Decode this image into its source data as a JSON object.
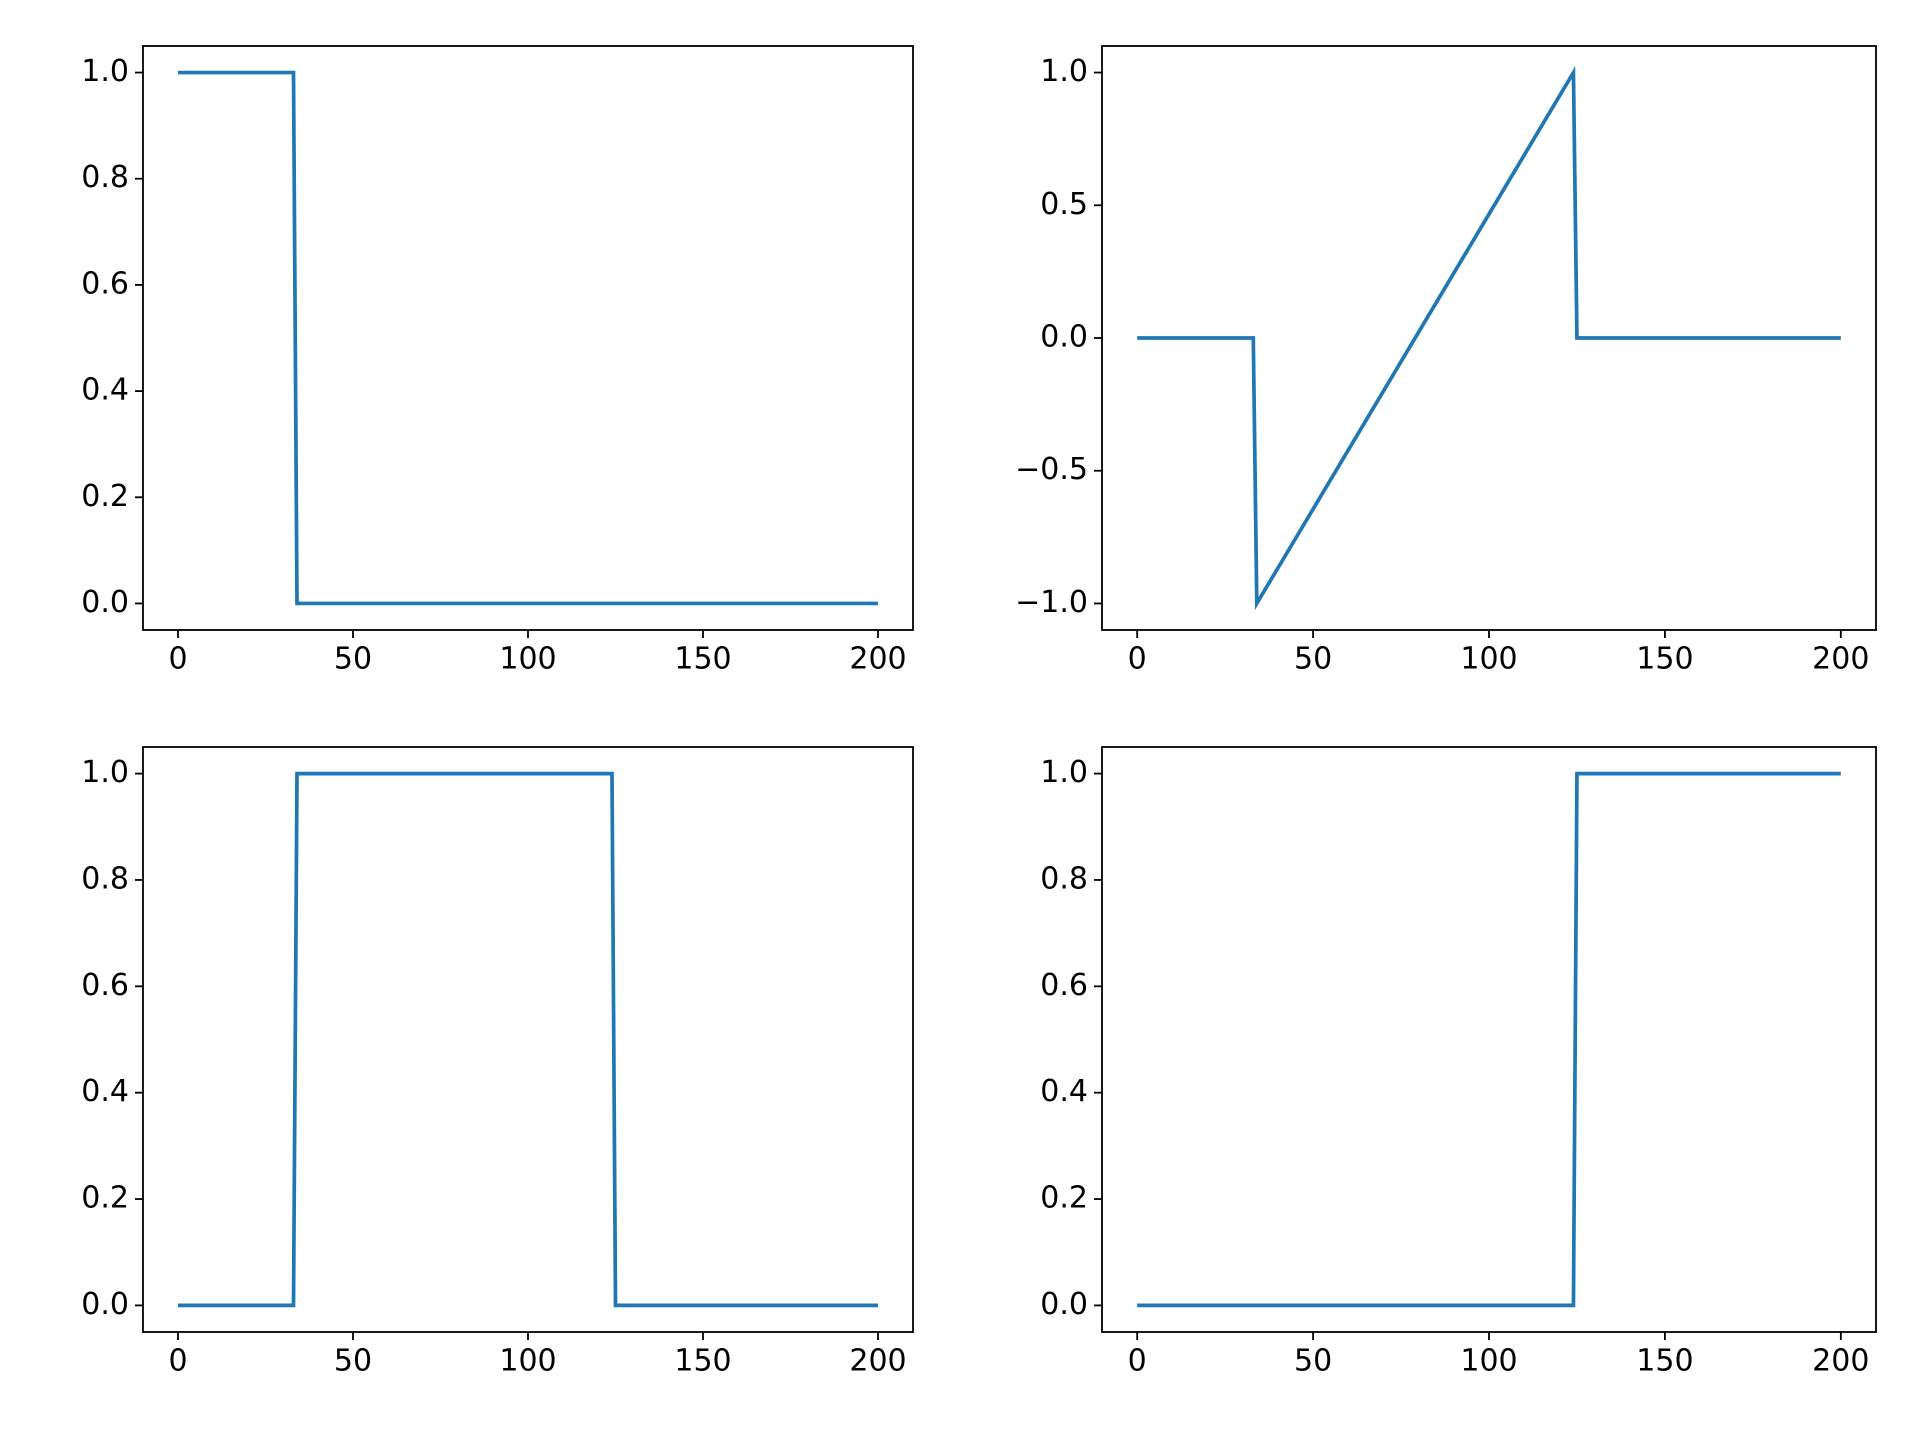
{
  "chart_data": [
    {
      "type": "line",
      "x": [
        0,
        33,
        34,
        200
      ],
      "values": [
        1,
        1,
        0,
        0
      ],
      "color": "#1f77b4",
      "xlim": [
        -10,
        210
      ],
      "xticks": [
        0,
        50,
        100,
        150,
        200
      ],
      "ylim": [
        -0.05,
        1.05
      ],
      "yticks": [
        {
          "value": 0,
          "label": "0.0"
        },
        {
          "value": 0.2,
          "label": "0.2"
        },
        {
          "value": 0.4,
          "label": "0.4"
        },
        {
          "value": 0.6,
          "label": "0.6"
        },
        {
          "value": 0.8,
          "label": "0.8"
        },
        {
          "value": 1,
          "label": "1.0"
        }
      ]
    },
    {
      "type": "line",
      "x": [
        0,
        33,
        34,
        124,
        125,
        200
      ],
      "values": [
        0,
        0,
        -1,
        1,
        0,
        0
      ],
      "color": "#1f77b4",
      "xlim": [
        -10,
        210
      ],
      "xticks": [
        0,
        50,
        100,
        150,
        200
      ],
      "ylim": [
        -1.1,
        1.1
      ],
      "yticks": [
        {
          "value": -1,
          "label": "−1.0"
        },
        {
          "value": -0.5,
          "label": "−0.5"
        },
        {
          "value": 0,
          "label": "0.0"
        },
        {
          "value": 0.5,
          "label": "0.5"
        },
        {
          "value": 1,
          "label": "1.0"
        }
      ]
    },
    {
      "type": "line",
      "x": [
        0,
        33,
        34,
        124,
        125,
        200
      ],
      "values": [
        0,
        0,
        1,
        1,
        0,
        0
      ],
      "color": "#1f77b4",
      "xlim": [
        -10,
        210
      ],
      "xticks": [
        0,
        50,
        100,
        150,
        200
      ],
      "ylim": [
        -0.05,
        1.05
      ],
      "yticks": [
        {
          "value": 0,
          "label": "0.0"
        },
        {
          "value": 0.2,
          "label": "0.2"
        },
        {
          "value": 0.4,
          "label": "0.4"
        },
        {
          "value": 0.6,
          "label": "0.6"
        },
        {
          "value": 0.8,
          "label": "0.8"
        },
        {
          "value": 1,
          "label": "1.0"
        }
      ]
    },
    {
      "type": "line",
      "x": [
        0,
        124,
        125,
        200
      ],
      "values": [
        0,
        0,
        1,
        1
      ],
      "color": "#1f77b4",
      "xlim": [
        -10,
        210
      ],
      "xticks": [
        0,
        50,
        100,
        150,
        200
      ],
      "ylim": [
        -0.05,
        1.05
      ],
      "yticks": [
        {
          "value": 0,
          "label": "0.0"
        },
        {
          "value": 0.2,
          "label": "0.2"
        },
        {
          "value": 0.4,
          "label": "0.4"
        },
        {
          "value": 0.6,
          "label": "0.6"
        },
        {
          "value": 0.8,
          "label": "0.8"
        },
        {
          "value": 1,
          "label": "1.0"
        }
      ]
    }
  ]
}
